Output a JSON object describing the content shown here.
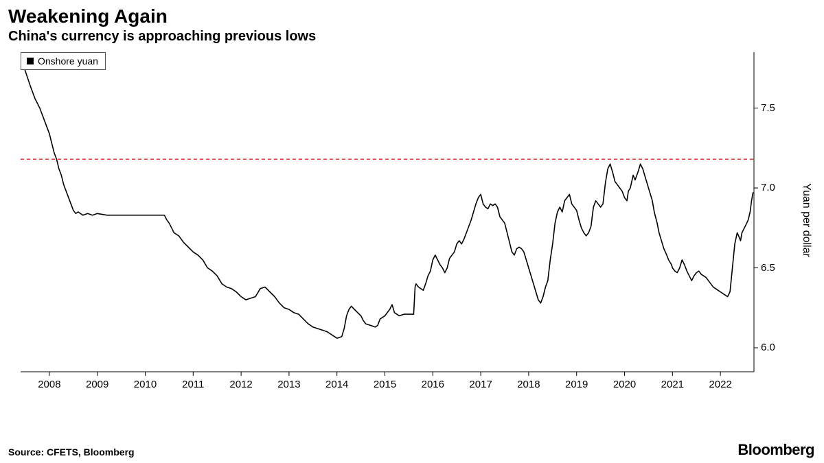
{
  "title": "Weakening Again",
  "subtitle": "China's currency is approaching previous lows",
  "source": "Source: CFETS, Bloomberg",
  "brand": "Bloomberg",
  "chart": {
    "type": "line",
    "legend": {
      "label": "Onshore yuan",
      "swatch_color": "#000000"
    },
    "y_axis": {
      "title": "Yuan per dollar",
      "side": "right",
      "lim": [
        5.85,
        7.85
      ],
      "ticks": [
        6.0,
        6.5,
        7.0,
        7.5
      ],
      "fontsize": 15,
      "tick_len": 6,
      "tick_color": "#000000"
    },
    "x_axis": {
      "lim": [
        2007.4,
        2022.7
      ],
      "ticks": [
        2008,
        2009,
        2010,
        2011,
        2012,
        2013,
        2014,
        2015,
        2016,
        2017,
        2018,
        2019,
        2020,
        2021,
        2022
      ],
      "fontsize": 15,
      "tick_len": 6,
      "tick_color": "#000000"
    },
    "reference_line": {
      "y": 7.18,
      "color": "#e60000",
      "dash": "5,4",
      "width": 1.2
    },
    "series": {
      "name": "Onshore yuan",
      "color": "#000000",
      "width": 1.6,
      "data": [
        [
          2007.4,
          7.82
        ],
        [
          2007.5,
          7.73
        ],
        [
          2007.6,
          7.64
        ],
        [
          2007.7,
          7.56
        ],
        [
          2007.8,
          7.5
        ],
        [
          2007.9,
          7.42
        ],
        [
          2008.0,
          7.34
        ],
        [
          2008.05,
          7.28
        ],
        [
          2008.1,
          7.22
        ],
        [
          2008.15,
          7.18
        ],
        [
          2008.2,
          7.12
        ],
        [
          2008.25,
          7.08
        ],
        [
          2008.3,
          7.02
        ],
        [
          2008.35,
          6.98
        ],
        [
          2008.4,
          6.94
        ],
        [
          2008.45,
          6.9
        ],
        [
          2008.5,
          6.86
        ],
        [
          2008.55,
          6.84
        ],
        [
          2008.6,
          6.85
        ],
        [
          2008.7,
          6.83
        ],
        [
          2008.8,
          6.84
        ],
        [
          2008.9,
          6.83
        ],
        [
          2009.0,
          6.84
        ],
        [
          2009.2,
          6.83
        ],
        [
          2009.4,
          6.83
        ],
        [
          2009.6,
          6.83
        ],
        [
          2009.8,
          6.83
        ],
        [
          2010.0,
          6.83
        ],
        [
          2010.2,
          6.83
        ],
        [
          2010.4,
          6.83
        ],
        [
          2010.45,
          6.8
        ],
        [
          2010.5,
          6.78
        ],
        [
          2010.6,
          6.72
        ],
        [
          2010.7,
          6.7
        ],
        [
          2010.8,
          6.66
        ],
        [
          2010.9,
          6.63
        ],
        [
          2011.0,
          6.6
        ],
        [
          2011.1,
          6.58
        ],
        [
          2011.2,
          6.55
        ],
        [
          2011.3,
          6.5
        ],
        [
          2011.4,
          6.48
        ],
        [
          2011.5,
          6.45
        ],
        [
          2011.6,
          6.4
        ],
        [
          2011.7,
          6.38
        ],
        [
          2011.8,
          6.37
        ],
        [
          2011.9,
          6.35
        ],
        [
          2012.0,
          6.32
        ],
        [
          2012.1,
          6.3
        ],
        [
          2012.2,
          6.31
        ],
        [
          2012.3,
          6.32
        ],
        [
          2012.4,
          6.37
        ],
        [
          2012.5,
          6.38
        ],
        [
          2012.6,
          6.35
        ],
        [
          2012.7,
          6.32
        ],
        [
          2012.8,
          6.28
        ],
        [
          2012.9,
          6.25
        ],
        [
          2013.0,
          6.24
        ],
        [
          2013.1,
          6.22
        ],
        [
          2013.2,
          6.21
        ],
        [
          2013.3,
          6.18
        ],
        [
          2013.4,
          6.15
        ],
        [
          2013.5,
          6.13
        ],
        [
          2013.6,
          6.12
        ],
        [
          2013.7,
          6.11
        ],
        [
          2013.8,
          6.1
        ],
        [
          2013.9,
          6.08
        ],
        [
          2014.0,
          6.06
        ],
        [
          2014.1,
          6.07
        ],
        [
          2014.15,
          6.12
        ],
        [
          2014.2,
          6.2
        ],
        [
          2014.25,
          6.24
        ],
        [
          2014.3,
          6.26
        ],
        [
          2014.4,
          6.23
        ],
        [
          2014.5,
          6.2
        ],
        [
          2014.55,
          6.17
        ],
        [
          2014.6,
          6.15
        ],
        [
          2014.7,
          6.14
        ],
        [
          2014.8,
          6.13
        ],
        [
          2014.85,
          6.14
        ],
        [
          2014.9,
          6.18
        ],
        [
          2015.0,
          6.2
        ],
        [
          2015.1,
          6.24
        ],
        [
          2015.15,
          6.27
        ],
        [
          2015.2,
          6.22
        ],
        [
          2015.3,
          6.2
        ],
        [
          2015.4,
          6.21
        ],
        [
          2015.5,
          6.21
        ],
        [
          2015.55,
          6.21
        ],
        [
          2015.6,
          6.21
        ],
        [
          2015.63,
          6.38
        ],
        [
          2015.65,
          6.4
        ],
        [
          2015.7,
          6.38
        ],
        [
          2015.75,
          6.37
        ],
        [
          2015.8,
          6.36
        ],
        [
          2015.85,
          6.4
        ],
        [
          2015.9,
          6.45
        ],
        [
          2015.95,
          6.48
        ],
        [
          2016.0,
          6.55
        ],
        [
          2016.05,
          6.58
        ],
        [
          2016.1,
          6.55
        ],
        [
          2016.15,
          6.52
        ],
        [
          2016.2,
          6.5
        ],
        [
          2016.25,
          6.47
        ],
        [
          2016.3,
          6.5
        ],
        [
          2016.35,
          6.56
        ],
        [
          2016.4,
          6.58
        ],
        [
          2016.45,
          6.6
        ],
        [
          2016.5,
          6.65
        ],
        [
          2016.55,
          6.67
        ],
        [
          2016.6,
          6.65
        ],
        [
          2016.65,
          6.68
        ],
        [
          2016.7,
          6.72
        ],
        [
          2016.75,
          6.76
        ],
        [
          2016.8,
          6.8
        ],
        [
          2016.85,
          6.85
        ],
        [
          2016.9,
          6.9
        ],
        [
          2016.95,
          6.94
        ],
        [
          2017.0,
          6.96
        ],
        [
          2017.05,
          6.9
        ],
        [
          2017.1,
          6.88
        ],
        [
          2017.15,
          6.87
        ],
        [
          2017.2,
          6.9
        ],
        [
          2017.25,
          6.89
        ],
        [
          2017.3,
          6.9
        ],
        [
          2017.35,
          6.88
        ],
        [
          2017.4,
          6.82
        ],
        [
          2017.45,
          6.8
        ],
        [
          2017.5,
          6.78
        ],
        [
          2017.55,
          6.72
        ],
        [
          2017.6,
          6.66
        ],
        [
          2017.65,
          6.6
        ],
        [
          2017.7,
          6.58
        ],
        [
          2017.75,
          6.62
        ],
        [
          2017.8,
          6.63
        ],
        [
          2017.85,
          6.62
        ],
        [
          2017.9,
          6.6
        ],
        [
          2017.95,
          6.55
        ],
        [
          2018.0,
          6.5
        ],
        [
          2018.05,
          6.45
        ],
        [
          2018.1,
          6.4
        ],
        [
          2018.15,
          6.35
        ],
        [
          2018.2,
          6.3
        ],
        [
          2018.25,
          6.28
        ],
        [
          2018.3,
          6.32
        ],
        [
          2018.35,
          6.38
        ],
        [
          2018.4,
          6.42
        ],
        [
          2018.45,
          6.55
        ],
        [
          2018.5,
          6.65
        ],
        [
          2018.55,
          6.78
        ],
        [
          2018.6,
          6.85
        ],
        [
          2018.65,
          6.88
        ],
        [
          2018.7,
          6.85
        ],
        [
          2018.75,
          6.92
        ],
        [
          2018.8,
          6.94
        ],
        [
          2018.85,
          6.96
        ],
        [
          2018.9,
          6.9
        ],
        [
          2018.95,
          6.88
        ],
        [
          2019.0,
          6.86
        ],
        [
          2019.05,
          6.8
        ],
        [
          2019.1,
          6.75
        ],
        [
          2019.15,
          6.72
        ],
        [
          2019.2,
          6.7
        ],
        [
          2019.25,
          6.72
        ],
        [
          2019.3,
          6.76
        ],
        [
          2019.35,
          6.88
        ],
        [
          2019.4,
          6.92
        ],
        [
          2019.45,
          6.9
        ],
        [
          2019.5,
          6.88
        ],
        [
          2019.55,
          6.9
        ],
        [
          2019.6,
          7.03
        ],
        [
          2019.65,
          7.12
        ],
        [
          2019.7,
          7.15
        ],
        [
          2019.75,
          7.1
        ],
        [
          2019.8,
          7.04
        ],
        [
          2019.85,
          7.02
        ],
        [
          2019.9,
          7.0
        ],
        [
          2019.95,
          6.98
        ],
        [
          2020.0,
          6.94
        ],
        [
          2020.05,
          6.92
        ],
        [
          2020.08,
          6.98
        ],
        [
          2020.12,
          7.0
        ],
        [
          2020.18,
          7.08
        ],
        [
          2020.22,
          7.05
        ],
        [
          2020.28,
          7.1
        ],
        [
          2020.33,
          7.15
        ],
        [
          2020.38,
          7.12
        ],
        [
          2020.42,
          7.08
        ],
        [
          2020.48,
          7.02
        ],
        [
          2020.52,
          6.98
        ],
        [
          2020.58,
          6.92
        ],
        [
          2020.62,
          6.85
        ],
        [
          2020.68,
          6.78
        ],
        [
          2020.72,
          6.72
        ],
        [
          2020.78,
          6.66
        ],
        [
          2020.82,
          6.62
        ],
        [
          2020.88,
          6.58
        ],
        [
          2020.92,
          6.55
        ],
        [
          2020.98,
          6.52
        ],
        [
          2021.0,
          6.5
        ],
        [
          2021.05,
          6.48
        ],
        [
          2021.1,
          6.47
        ],
        [
          2021.15,
          6.5
        ],
        [
          2021.2,
          6.55
        ],
        [
          2021.25,
          6.52
        ],
        [
          2021.3,
          6.48
        ],
        [
          2021.35,
          6.45
        ],
        [
          2021.4,
          6.42
        ],
        [
          2021.45,
          6.45
        ],
        [
          2021.5,
          6.47
        ],
        [
          2021.55,
          6.48
        ],
        [
          2021.6,
          6.46
        ],
        [
          2021.65,
          6.45
        ],
        [
          2021.7,
          6.44
        ],
        [
          2021.75,
          6.42
        ],
        [
          2021.8,
          6.4
        ],
        [
          2021.85,
          6.38
        ],
        [
          2021.9,
          6.37
        ],
        [
          2021.95,
          6.36
        ],
        [
          2022.0,
          6.35
        ],
        [
          2022.05,
          6.34
        ],
        [
          2022.1,
          6.33
        ],
        [
          2022.15,
          6.32
        ],
        [
          2022.2,
          6.35
        ],
        [
          2022.25,
          6.5
        ],
        [
          2022.3,
          6.65
        ],
        [
          2022.35,
          6.72
        ],
        [
          2022.38,
          6.7
        ],
        [
          2022.42,
          6.67
        ],
        [
          2022.45,
          6.72
        ],
        [
          2022.5,
          6.75
        ],
        [
          2022.55,
          6.78
        ],
        [
          2022.58,
          6.8
        ],
        [
          2022.62,
          6.85
        ],
        [
          2022.65,
          6.92
        ],
        [
          2022.68,
          6.97
        ],
        [
          2022.7,
          6.97
        ]
      ]
    },
    "background_color": "#ffffff",
    "axis_color": "#000000",
    "axis_width": 1.0
  }
}
